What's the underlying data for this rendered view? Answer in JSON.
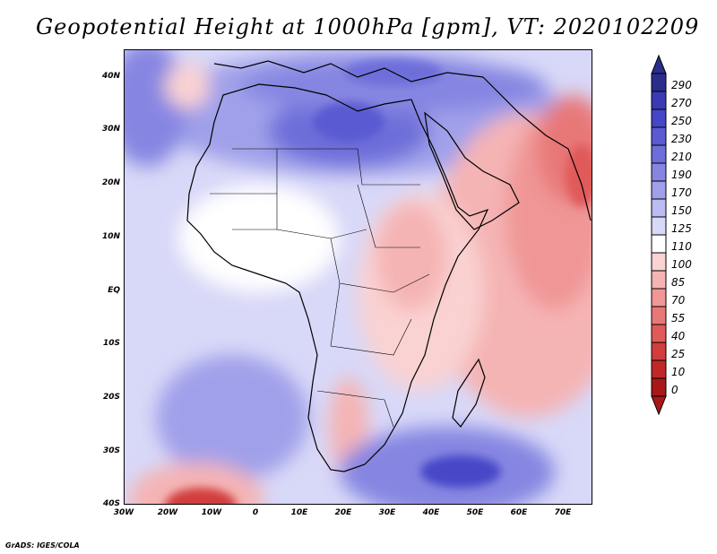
{
  "title": "Geopotential Height at 1000hPa [gpm], VT: 2020102209",
  "footer": "GrADS: IGES/COLA",
  "map": {
    "region": "Africa",
    "lon_range": [
      -30,
      77
    ],
    "lat_range": [
      -40,
      45
    ],
    "lat_labels": [
      "40N",
      "30N",
      "20N",
      "10N",
      "EQ",
      "10S",
      "20S",
      "30S",
      "40S"
    ],
    "lon_labels": [
      "30W",
      "20W",
      "10W",
      "0",
      "10E",
      "20E",
      "30E",
      "40E",
      "50E",
      "60E",
      "70E"
    ]
  },
  "colorbar": {
    "levels": [
      "290",
      "270",
      "250",
      "230",
      "210",
      "190",
      "170",
      "150",
      "125",
      "110",
      "100",
      "85",
      "70",
      "55",
      "40",
      "25",
      "10",
      "0"
    ],
    "colors": [
      "#2c2c8c",
      "#3a3ab4",
      "#4646c8",
      "#5a5ad2",
      "#6e6eda",
      "#8686e2",
      "#a0a0ea",
      "#bcbcf2",
      "#d8d8f8",
      "#ffffff",
      "#fad2d2",
      "#f5b4b4",
      "#f09696",
      "#e87878",
      "#e05a5a",
      "#d23c3c",
      "#c02828",
      "#a81818"
    ]
  }
}
